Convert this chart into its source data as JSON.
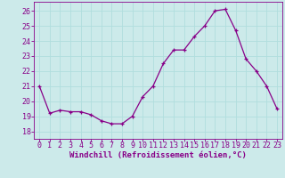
{
  "x": [
    0,
    1,
    2,
    3,
    4,
    5,
    6,
    7,
    8,
    9,
    10,
    11,
    12,
    13,
    14,
    15,
    16,
    17,
    18,
    19,
    20,
    21,
    22,
    23
  ],
  "y": [
    21.0,
    19.2,
    19.4,
    19.3,
    19.3,
    19.1,
    18.7,
    18.5,
    18.5,
    19.0,
    20.3,
    21.0,
    22.5,
    23.4,
    23.4,
    24.3,
    25.0,
    26.0,
    26.1,
    24.7,
    22.8,
    22.0,
    21.0,
    19.5
  ],
  "line_color": "#880088",
  "marker": "+",
  "marker_size": 3,
  "xlabel": "Windchill (Refroidissement éolien,°C)",
  "ylim": [
    17.5,
    26.6
  ],
  "xlim": [
    -0.5,
    23.5
  ],
  "yticks": [
    18,
    19,
    20,
    21,
    22,
    23,
    24,
    25,
    26
  ],
  "xticks": [
    0,
    1,
    2,
    3,
    4,
    5,
    6,
    7,
    8,
    9,
    10,
    11,
    12,
    13,
    14,
    15,
    16,
    17,
    18,
    19,
    20,
    21,
    22,
    23
  ],
  "grid_color": "#b0dede",
  "bg_color": "#cceaea",
  "axis_color": "#880088",
  "xlabel_fontsize": 6.5,
  "tick_fontsize": 6.0,
  "line_width": 0.9
}
